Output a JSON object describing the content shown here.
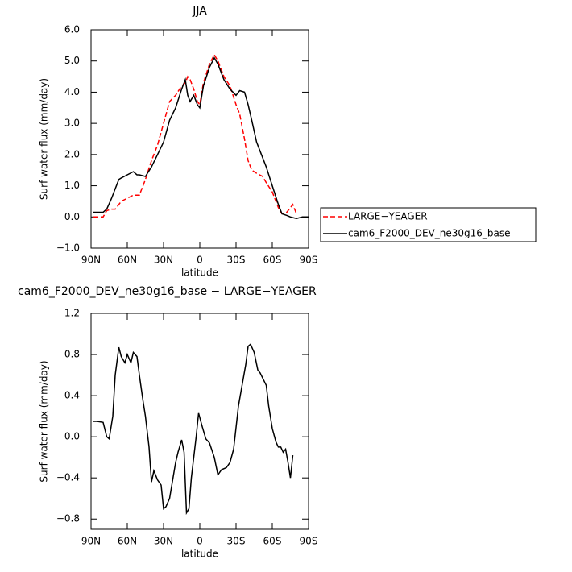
{
  "chart_data": [
    {
      "type": "line",
      "title": "JJA",
      "xlabel": "latitude",
      "ylabel": "Surf water flux (mm/day)",
      "x": [
        88,
        85,
        80,
        77,
        73,
        70,
        67,
        65,
        60,
        55,
        52,
        50,
        45,
        40,
        35,
        30,
        25,
        20,
        15,
        12,
        10,
        8,
        5,
        2,
        0,
        -3,
        -8,
        -12,
        -15,
        -20,
        -25,
        -30,
        -33,
        -37,
        -40,
        -43,
        -47,
        -52,
        -55,
        -60,
        -65,
        -68,
        -72,
        -75,
        -77,
        -80,
        -85,
        -90
      ],
      "series": [
        {
          "name": "LARGE−YEAGER",
          "color": "#ff0000",
          "dashed": true,
          "values": [
            0,
            0,
            0,
            0.2,
            0.25,
            0.25,
            0.4,
            0.5,
            0.6,
            0.7,
            0.7,
            0.7,
            1.2,
            1.8,
            2.3,
            3.0,
            3.7,
            3.9,
            4.2,
            4.3,
            4.5,
            4.4,
            4.1,
            3.7,
            3.6,
            4.3,
            4.9,
            5.2,
            5.0,
            4.5,
            4.2,
            3.6,
            3.3,
            2.5,
            1.8,
            1.5,
            1.4,
            1.3,
            1.1,
            0.8,
            0.3,
            0.1,
            0.15,
            0.3,
            0.4,
            0.1,
            null,
            null
          ]
        },
        {
          "name": "cam6_F2000_DEV_ne30g16_base",
          "color": "#000000",
          "dashed": false,
          "values": [
            0.15,
            0.15,
            0.15,
            0.25,
            0.6,
            0.9,
            1.2,
            1.25,
            1.35,
            1.45,
            1.35,
            1.35,
            1.3,
            1.6,
            2.0,
            2.4,
            3.1,
            3.5,
            4.1,
            4.4,
            3.9,
            3.7,
            3.9,
            3.6,
            3.5,
            4.2,
            4.8,
            5.1,
            4.9,
            4.4,
            4.1,
            3.9,
            4.05,
            4.0,
            3.6,
            3.1,
            2.4,
            1.9,
            1.6,
            1.0,
            0.4,
            0.1,
            0.05,
            0.0,
            -0.02,
            -0.05,
            0.0,
            0.0
          ]
        }
      ],
      "xlim": [
        90,
        -90
      ],
      "xticks": [
        {
          "value": 90,
          "label": "90N"
        },
        {
          "value": 60,
          "label": "60N"
        },
        {
          "value": 30,
          "label": "30N"
        },
        0,
        {
          "value": -30,
          "label": "30S"
        },
        {
          "value": -60,
          "label": "60S"
        },
        {
          "value": -90,
          "label": "90S"
        }
      ],
      "ylim": [
        -1,
        6
      ],
      "yticks": [
        {
          "value": -1,
          "label": "−1.0"
        },
        {
          "value": 0,
          "label": "0.0"
        },
        {
          "value": 1,
          "label": "1.0"
        },
        {
          "value": 2,
          "label": "2.0"
        },
        {
          "value": 3,
          "label": "3.0"
        },
        {
          "value": 4,
          "label": "4.0"
        },
        {
          "value": 5,
          "label": "5.0"
        },
        {
          "value": 6,
          "label": "6.0"
        }
      ],
      "legend": "right"
    },
    {
      "type": "line",
      "title": "cam6_F2000_DEV_ne30g16_base − LARGE−YEAGER",
      "xlabel": "latitude",
      "ylabel": "Surf water flux (mm/day)",
      "x": [
        88,
        85,
        80,
        77,
        75,
        72,
        70,
        67,
        65,
        62,
        60,
        57,
        55,
        52,
        50,
        47,
        45,
        42,
        40,
        38,
        35,
        32,
        30,
        28,
        25,
        20,
        18,
        15,
        13,
        11,
        9,
        7,
        3,
        1,
        -2,
        -5,
        -8,
        -12,
        -15,
        -18,
        -22,
        -25,
        -28,
        -32,
        -35,
        -38,
        -40,
        -42,
        -45,
        -48,
        -50,
        -55,
        -57,
        -60,
        -63,
        -65,
        -67,
        -69,
        -71,
        -73,
        -75,
        -77
      ],
      "values": [
        0.15,
        0.15,
        0.14,
        0.0,
        -0.02,
        0.2,
        0.6,
        0.87,
        0.78,
        0.72,
        0.8,
        0.72,
        0.82,
        0.78,
        0.6,
        0.35,
        0.2,
        -0.1,
        -0.44,
        -0.33,
        -0.42,
        -0.47,
        -0.7,
        -0.68,
        -0.6,
        -0.25,
        -0.15,
        -0.03,
        -0.15,
        -0.74,
        -0.7,
        -0.4,
        0.0,
        0.23,
        0.1,
        -0.02,
        -0.06,
        -0.2,
        -0.37,
        -0.32,
        -0.3,
        -0.25,
        -0.12,
        0.3,
        0.5,
        0.7,
        0.88,
        0.9,
        0.82,
        0.65,
        0.62,
        0.5,
        0.3,
        0.08,
        -0.05,
        -0.1,
        -0.1,
        -0.15,
        -0.12,
        -0.25,
        -0.4,
        -0.18
      ],
      "color": "#000000",
      "xlim": [
        90,
        -90
      ],
      "xticks": [
        {
          "value": 90,
          "label": "90N"
        },
        {
          "value": 60,
          "label": "60N"
        },
        {
          "value": 30,
          "label": "30N"
        },
        0,
        {
          "value": -30,
          "label": "30S"
        },
        {
          "value": -60,
          "label": "60S"
        },
        {
          "value": -90,
          "label": "90S"
        }
      ],
      "ylim": [
        -0.9,
        1.2
      ],
      "yticks": [
        {
          "value": -0.8,
          "label": "−0.8"
        },
        {
          "value": -0.4,
          "label": "−0.4"
        },
        {
          "value": 0,
          "label": "0.0"
        },
        0.4,
        0.8,
        1.2
      ]
    }
  ]
}
